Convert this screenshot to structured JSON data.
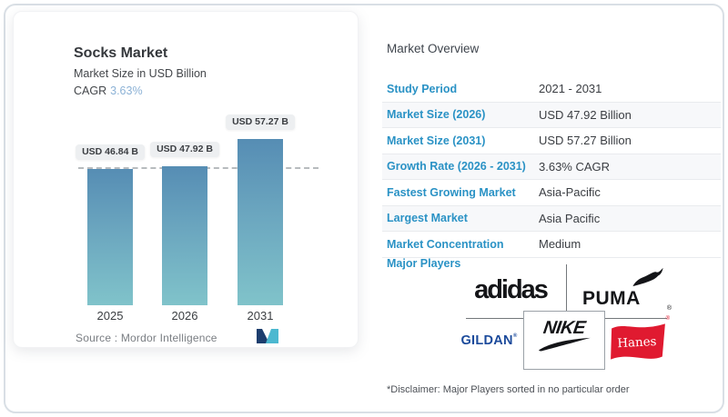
{
  "chart_data": {
    "type": "bar",
    "title": "Socks Market",
    "subtitle": "Market Size in USD Billion",
    "cagr_label": "CAGR",
    "cagr_value": "3.63%",
    "categories": [
      "2025",
      "2026",
      "2031"
    ],
    "values": [
      46.84,
      47.92,
      57.27
    ],
    "bar_labels": [
      "USD 46.84 B",
      "USD 47.92 B",
      "USD 57.27 B"
    ],
    "ylabel": "Market Size in USD Billion",
    "grid": "off",
    "legend": "none",
    "source_label": "Source :  Mordor Intelligence",
    "bar_color_top": "#568db4",
    "bar_color_bottom": "#80c3ca"
  },
  "overview": {
    "title": "Market Overview",
    "rows": [
      {
        "label": "Study Period",
        "value": "2021 - 2031"
      },
      {
        "label": "Market Size (2026)",
        "value": "USD 47.92 Billion"
      },
      {
        "label": "Market Size (2031)",
        "value": "USD 57.27 Billion"
      },
      {
        "label": "Growth Rate (2026 - 2031)",
        "value": "3.63% CAGR"
      },
      {
        "label": "Fastest Growing Market",
        "value": "Asia-Pacific"
      },
      {
        "label": "Largest Market",
        "value": "Asia Pacific"
      },
      {
        "label": "Market Concentration",
        "value": "Medium"
      }
    ],
    "major_players_label": "Major Players",
    "disclaimer": "*Disclaimer: Major Players sorted in no particular order"
  },
  "players": {
    "adidas": "adidas",
    "puma": "PUMA",
    "nike": "NIKE",
    "gildan": "GILDAN",
    "hanes": "Hanes",
    "registered_mark": "®"
  },
  "icons": {
    "mordor_logo": "mordor-intelligence-logo-mark",
    "puma_cat": "leaping-puma-cat",
    "nike_swoosh": "nike-swoosh"
  },
  "colors": {
    "accent_blue": "#2a92c5",
    "cagr_blue": "#8cb2d6",
    "bar_top": "#568db4",
    "bar_bottom": "#80c3ca",
    "gildan_navy": "#1b4a9b",
    "hanes_red": "#e01a30",
    "row_stripe": "#f7f8fa",
    "frame_border": "#d9dfe5"
  }
}
